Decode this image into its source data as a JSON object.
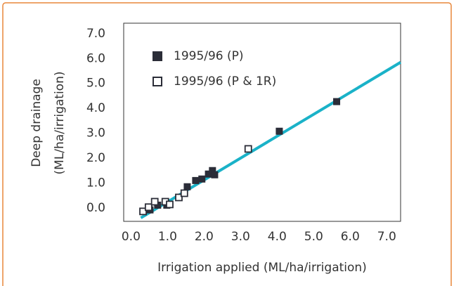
{
  "chart_data": {
    "type": "scatter",
    "x_label": "Irrigation applied (ML/ha/irrigation)",
    "y_label": [
      "Deep drainage",
      "(ML/ha/irrigation)"
    ],
    "xlim": [
      -0.2,
      7.38
    ],
    "ylim": [
      -0.54,
      7.42
    ],
    "xticks": [
      {
        "value": 0,
        "label": "0.0"
      },
      {
        "value": 1,
        "label": "1.0"
      },
      {
        "value": 2,
        "label": "2.0"
      },
      {
        "value": 3,
        "label": "3.0"
      },
      {
        "value": 4,
        "label": "4.0"
      },
      {
        "value": 5,
        "label": "5.0"
      },
      {
        "value": 6,
        "label": "6.0"
      },
      {
        "value": 7,
        "label": "7.0"
      }
    ],
    "yticks": [
      {
        "value": 0,
        "label": "0.0"
      },
      {
        "value": 1,
        "label": "1.0"
      },
      {
        "value": 2,
        "label": "2.0"
      },
      {
        "value": 3,
        "label": "3.0"
      },
      {
        "value": 4,
        "label": "4.0"
      },
      {
        "value": 5,
        "label": "5.0"
      },
      {
        "value": 6,
        "label": "6.0"
      },
      {
        "value": 7,
        "label": "7.0"
      }
    ],
    "series": [
      {
        "name": "1995/96 (P)",
        "color": "#2b2d38",
        "marker": "filled",
        "x": [
          0.52,
          0.73,
          0.98,
          1.54,
          1.77,
          1.94,
          2.12,
          2.23,
          2.29,
          4.06,
          5.63
        ],
        "values": [
          -0.08,
          0.11,
          0.11,
          0.85,
          1.1,
          1.16,
          1.36,
          1.5,
          1.33,
          3.08,
          4.27
        ]
      },
      {
        "name": "1995/96 (P & 1R)",
        "color": "#2b2d38",
        "marker": "open",
        "x": [
          0.33,
          0.48,
          0.65,
          0.94,
          1.06,
          1.31,
          1.46,
          3.21
        ],
        "values": [
          -0.14,
          0.03,
          0.25,
          0.25,
          0.14,
          0.42,
          0.59,
          2.37
        ]
      }
    ],
    "fit": {
      "color": "#1ab2c8",
      "x": [
        0.27,
        7.38
      ],
      "values": [
        -0.4,
        5.85
      ]
    }
  }
}
